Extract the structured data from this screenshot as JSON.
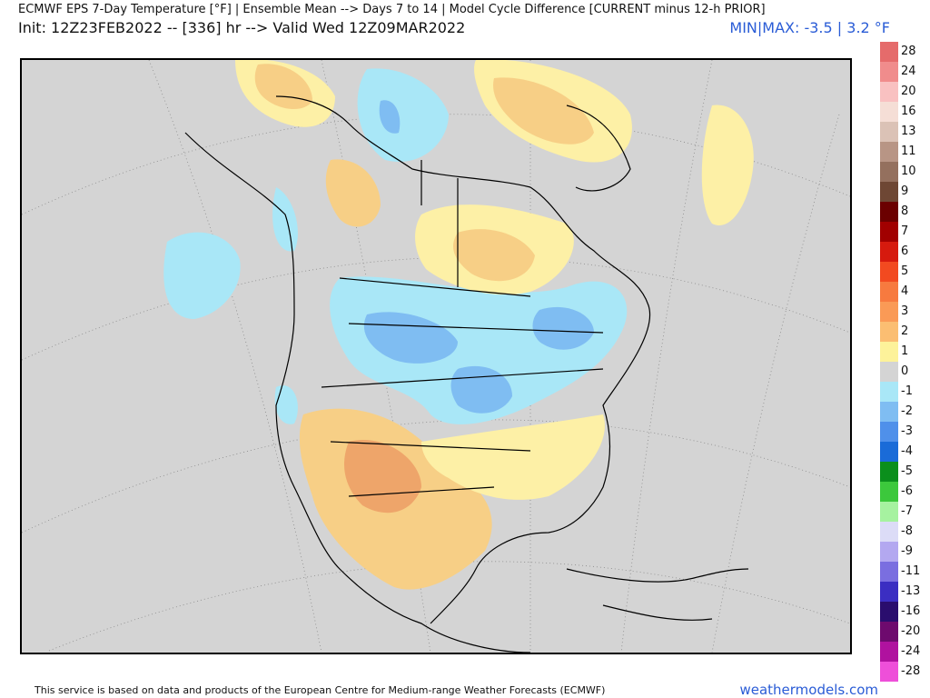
{
  "header": {
    "title": "ECMWF EPS 7-Day Temperature [°F] | Ensemble Mean --> Days 7 to 14 | Model Cycle Difference [CURRENT minus 12-h PRIOR]",
    "subtitle": "Init: 12Z23FEB2022 -- [336] hr --> Valid Wed 12Z09MAR2022",
    "minmax": "MIN|MAX: -3.5 | 3.2 °F"
  },
  "colors": {
    "background": "#d4d4d4",
    "land_line": "#000000",
    "neg_light": "#a9e7f7",
    "neg_mid": "#7fbdf2",
    "neg_dark": "#5b9bea",
    "pos_light": "#fdf0a6",
    "pos_mid": "#f7cf86",
    "pos_dark": "#eea56a",
    "accent_text": "#2a5cd6"
  },
  "legend": {
    "items": [
      {
        "label": "28",
        "color": "#e56b6b"
      },
      {
        "label": "24",
        "color": "#f08c8c"
      },
      {
        "label": "20",
        "color": "#f9c1c1"
      },
      {
        "label": "16",
        "color": "#f5ded6"
      },
      {
        "label": "13",
        "color": "#dbc2b6"
      },
      {
        "label": "11",
        "color": "#b89585"
      },
      {
        "label": "10",
        "color": "#94705e"
      },
      {
        "label": "9",
        "color": "#6e4734"
      },
      {
        "label": "8",
        "color": "#6b0000"
      },
      {
        "label": "7",
        "color": "#a10000"
      },
      {
        "label": "6",
        "color": "#d61a0e"
      },
      {
        "label": "5",
        "color": "#f24a20"
      },
      {
        "label": "4",
        "color": "#f77a3f"
      },
      {
        "label": "3",
        "color": "#fa9a56"
      },
      {
        "label": "2",
        "color": "#fbbe72"
      },
      {
        "label": "1",
        "color": "#fdf29a"
      },
      {
        "label": "0",
        "color": "#d4d4d4"
      },
      {
        "label": "-1",
        "color": "#a9e7f7"
      },
      {
        "label": "-2",
        "color": "#7fbdf2"
      },
      {
        "label": "-3",
        "color": "#4f90ea"
      },
      {
        "label": "-4",
        "color": "#1a6bd8"
      },
      {
        "label": "-5",
        "color": "#0b8f1c"
      },
      {
        "label": "-6",
        "color": "#3cc83c"
      },
      {
        "label": "-7",
        "color": "#a6f2a0"
      },
      {
        "label": "-8",
        "color": "#dcdcf7"
      },
      {
        "label": "-9",
        "color": "#b3a8f0"
      },
      {
        "label": "-11",
        "color": "#7a6ee0"
      },
      {
        "label": "-13",
        "color": "#3b2ec2"
      },
      {
        "label": "-16",
        "color": "#2a0d6e"
      },
      {
        "label": "-20",
        "color": "#6e0a6e"
      },
      {
        "label": "-24",
        "color": "#b0129f"
      },
      {
        "label": "-28",
        "color": "#ee4fd9"
      }
    ]
  },
  "footer": {
    "credit": "This service is based on data and products of the European Centre for Medium-range Weather Forecasts (ECMWF)",
    "site": "weathermodels.com"
  }
}
